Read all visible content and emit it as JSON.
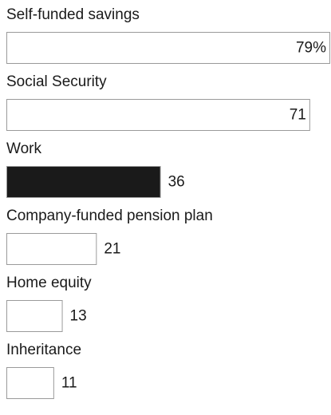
{
  "chart_data": {
    "type": "bar",
    "orientation": "horizontal",
    "categories": [
      "Self-funded savings",
      "Social Security",
      "Work",
      "Company-funded pension plan",
      "Home equity",
      "Inheritance"
    ],
    "values": [
      79,
      71,
      36,
      21,
      13,
      11
    ],
    "value_labels": [
      "79%",
      "71",
      "36",
      "21",
      "13",
      "11"
    ],
    "colors": [
      "#ffffff",
      "#ffffff",
      "#1a1a1a",
      "#ffffff",
      "#ffffff",
      "#ffffff"
    ]
  }
}
